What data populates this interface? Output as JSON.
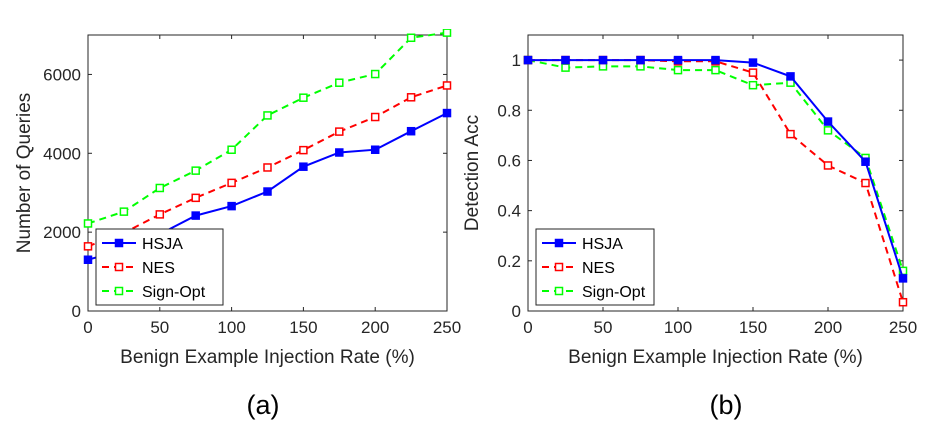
{
  "chart_data": [
    {
      "type": "line",
      "panel_label": "(a)",
      "xlabel": "Benign Example Injection Rate (%)",
      "ylabel": "Number of Queries",
      "xlim": [
        0,
        250
      ],
      "ylim": [
        0,
        7000
      ],
      "xticks": [
        0,
        50,
        100,
        150,
        200,
        250
      ],
      "yticks": [
        0,
        2000,
        4000,
        6000
      ],
      "legend_position": "bottom-left",
      "grid": false,
      "series": [
        {
          "name": "HSJA",
          "color": "#0000ff",
          "dash": "solid",
          "marker_fill": "filled",
          "x": [
            0,
            25,
            50,
            75,
            100,
            125,
            150,
            175,
            200,
            225,
            250
          ],
          "y": [
            1300,
            1550,
            1950,
            2420,
            2660,
            3030,
            3660,
            4020,
            4090,
            4560,
            5020
          ]
        },
        {
          "name": "NES",
          "color": "#ff0000",
          "dash": "dashed",
          "marker_fill": "open",
          "x": [
            0,
            25,
            50,
            75,
            100,
            125,
            150,
            175,
            200,
            225,
            250
          ],
          "y": [
            1640,
            1980,
            2450,
            2870,
            3250,
            3640,
            4080,
            4550,
            4920,
            5420,
            5720
          ]
        },
        {
          "name": "Sign-Opt",
          "color": "#00ff00",
          "dash": "dashed",
          "marker_fill": "open",
          "x": [
            0,
            25,
            50,
            75,
            100,
            125,
            150,
            175,
            200,
            225,
            250
          ],
          "y": [
            2220,
            2520,
            3120,
            3560,
            4090,
            4960,
            5410,
            5790,
            6010,
            6930,
            7060
          ]
        }
      ]
    },
    {
      "type": "line",
      "panel_label": "(b)",
      "xlabel": "Benign Example Injection Rate (%)",
      "ylabel": "Detection Acc",
      "xlim": [
        0,
        250
      ],
      "ylim": [
        0,
        1.1
      ],
      "xticks": [
        0,
        50,
        100,
        150,
        200,
        250
      ],
      "yticks": [
        0,
        0.2,
        0.4,
        0.6,
        0.8,
        1
      ],
      "legend_position": "bottom-left",
      "grid": false,
      "series": [
        {
          "name": "HSJA",
          "color": "#0000ff",
          "dash": "solid",
          "marker_fill": "filled",
          "x": [
            0,
            25,
            50,
            75,
            100,
            125,
            150,
            175,
            200,
            225,
            250
          ],
          "y": [
            1.0,
            1.0,
            1.0,
            1.0,
            1.0,
            1.0,
            0.99,
            0.935,
            0.755,
            0.595,
            0.13
          ]
        },
        {
          "name": "NES",
          "color": "#ff0000",
          "dash": "dashed",
          "marker_fill": "open",
          "x": [
            0,
            25,
            50,
            75,
            100,
            125,
            150,
            175,
            200,
            225,
            250
          ],
          "y": [
            1.0,
            1.0,
            1.0,
            1.0,
            0.995,
            0.995,
            0.95,
            0.705,
            0.58,
            0.51,
            0.035
          ]
        },
        {
          "name": "Sign-Opt",
          "color": "#00ff00",
          "dash": "dashed",
          "marker_fill": "open",
          "x": [
            0,
            25,
            50,
            75,
            100,
            125,
            150,
            175,
            200,
            225,
            250
          ],
          "y": [
            1.0,
            0.97,
            0.975,
            0.975,
            0.96,
            0.96,
            0.9,
            0.91,
            0.72,
            0.61,
            0.16
          ]
        }
      ]
    }
  ]
}
